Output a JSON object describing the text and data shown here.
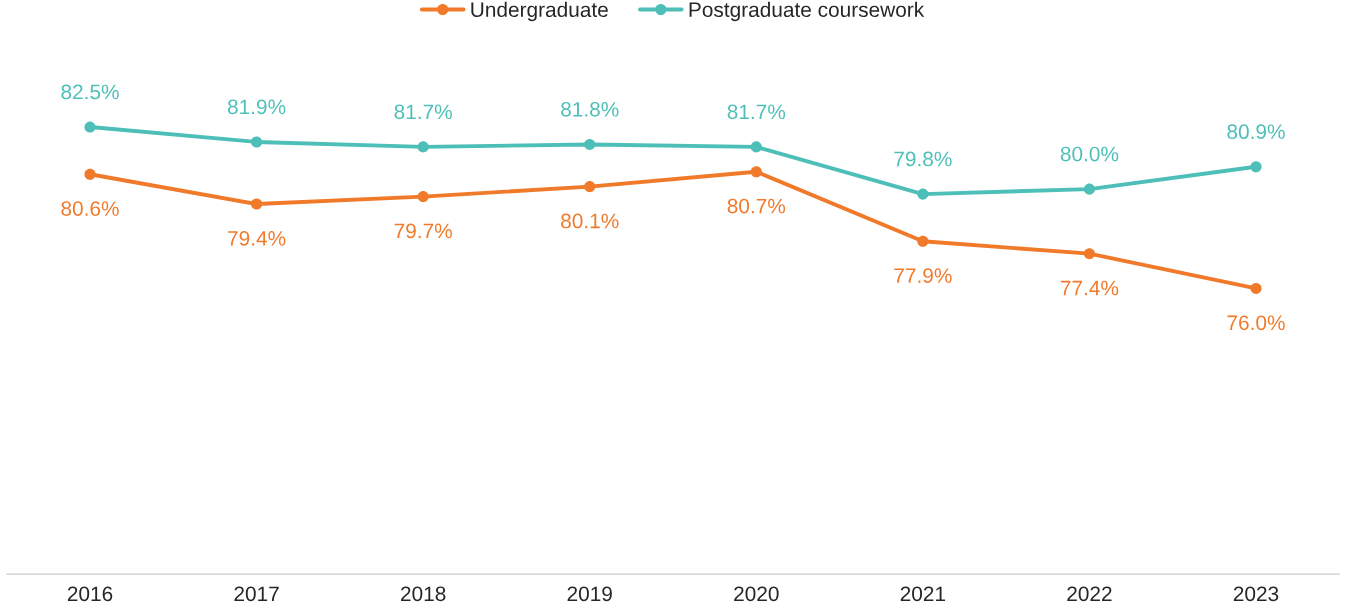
{
  "chart_data": {
    "type": "line",
    "categories": [
      "2016",
      "2017",
      "2018",
      "2019",
      "2020",
      "2021",
      "2022",
      "2023"
    ],
    "series": [
      {
        "name": "Undergraduate",
        "color": "#f07a2a",
        "values": [
          80.6,
          79.4,
          79.7,
          80.1,
          80.7,
          77.9,
          77.4,
          76.0
        ],
        "value_labels": [
          "80.6%",
          "79.4%",
          "79.7%",
          "80.1%",
          "80.7%",
          "77.9%",
          "77.4%",
          "76.0%"
        ]
      },
      {
        "name": "Postgraduate coursework",
        "color": "#4dbfb8",
        "values": [
          82.5,
          81.9,
          81.7,
          81.8,
          81.7,
          79.8,
          80.0,
          80.9
        ],
        "value_labels": [
          "82.5%",
          "81.9%",
          "81.7%",
          "81.8%",
          "81.7%",
          "79.8%",
          "80.0%",
          "80.9%"
        ]
      }
    ],
    "tick_labels": "x",
    "marker": "circle",
    "line_style": "solid",
    "legend": "top",
    "grid": false
  }
}
